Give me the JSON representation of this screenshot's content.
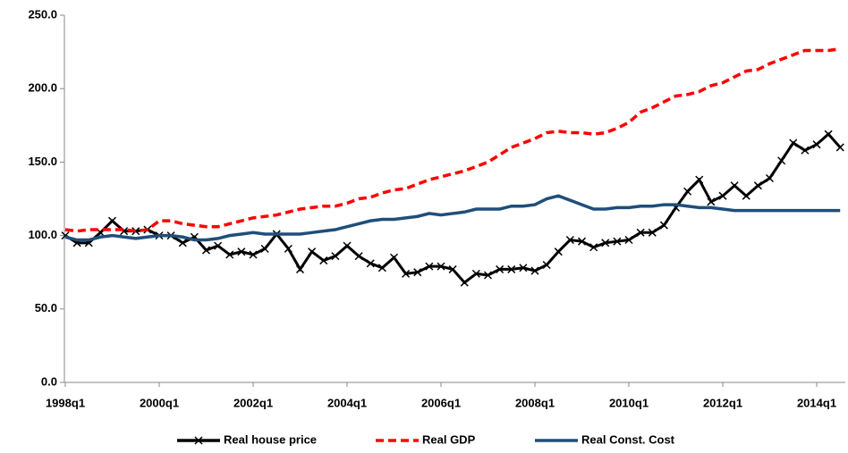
{
  "chart_data": {
    "type": "line",
    "categories": [
      "1998q1",
      null,
      null,
      null,
      null,
      null,
      null,
      null,
      "2000q1",
      null,
      null,
      null,
      null,
      null,
      null,
      null,
      "2002q1",
      null,
      null,
      null,
      null,
      null,
      null,
      null,
      "2004q1",
      null,
      null,
      null,
      null,
      null,
      null,
      null,
      "2006q1",
      null,
      null,
      null,
      null,
      null,
      null,
      null,
      "2008q1",
      null,
      null,
      null,
      null,
      null,
      null,
      null,
      "2010q1",
      null,
      null,
      null,
      null,
      null,
      null,
      null,
      "2012q1",
      null,
      null,
      null,
      null,
      null,
      null,
      null,
      "2014q1",
      null,
      null
    ],
    "series": [
      {
        "name": "Real house price",
        "color": "#000000",
        "marker": "x",
        "dash": false,
        "values": [
          100,
          95,
          95,
          102,
          110,
          103,
          103,
          104,
          100,
          100,
          95,
          99,
          90,
          93,
          87,
          89,
          87,
          91,
          101,
          91,
          77,
          89,
          83,
          86,
          93,
          86,
          81,
          78,
          85,
          74,
          75,
          79,
          79,
          77,
          68,
          74,
          73,
          77,
          77,
          78,
          76,
          80,
          89,
          97,
          96,
          92,
          95,
          96,
          97,
          102,
          102,
          107,
          119,
          130,
          138,
          123,
          127,
          134,
          127,
          134,
          139,
          151,
          163,
          158,
          162,
          169,
          160
        ]
      },
      {
        "name": "Real GDP",
        "color": "#ff0000",
        "marker": null,
        "dash": true,
        "values": [
          104,
          103,
          104,
          104,
          104,
          104,
          103,
          104,
          110,
          110,
          108,
          107,
          106,
          106,
          108,
          110,
          112,
          113,
          114,
          116,
          118,
          119,
          120,
          120,
          122,
          125,
          126,
          129,
          131,
          132,
          135,
          138,
          140,
          142,
          144,
          147,
          150,
          155,
          160,
          163,
          166,
          170,
          171,
          170,
          170,
          169,
          170,
          173,
          177,
          184,
          187,
          191,
          195,
          196,
          198,
          202,
          204,
          208,
          212,
          213,
          217,
          220,
          223,
          226,
          226,
          226,
          227
        ]
      },
      {
        "name": "Real Const. Cost",
        "color": "#1f4e79",
        "marker": null,
        "dash": false,
        "values": [
          99,
          97,
          97,
          99,
          100,
          99,
          98,
          99,
          100,
          100,
          99,
          97,
          97,
          98,
          100,
          101,
          102,
          101,
          101,
          101,
          101,
          102,
          103,
          104,
          106,
          108,
          110,
          111,
          111,
          112,
          113,
          115,
          114,
          115,
          116,
          118,
          118,
          118,
          120,
          120,
          121,
          125,
          127,
          124,
          121,
          118,
          118,
          119,
          119,
          120,
          120,
          121,
          121,
          120,
          119,
          119,
          118,
          117,
          117,
          117,
          117,
          117,
          117,
          117,
          117,
          117,
          117
        ]
      }
    ],
    "ylim": [
      0,
      250
    ],
    "yticks": [
      {
        "value": 0,
        "label": "0.0"
      },
      {
        "value": 50,
        "label": "50.0"
      },
      {
        "value": 100,
        "label": "100.0"
      },
      {
        "value": 150,
        "label": "150.0"
      },
      {
        "value": 200,
        "label": "200.0"
      },
      {
        "value": 250,
        "label": "250.0"
      }
    ],
    "legend": "bottom"
  }
}
